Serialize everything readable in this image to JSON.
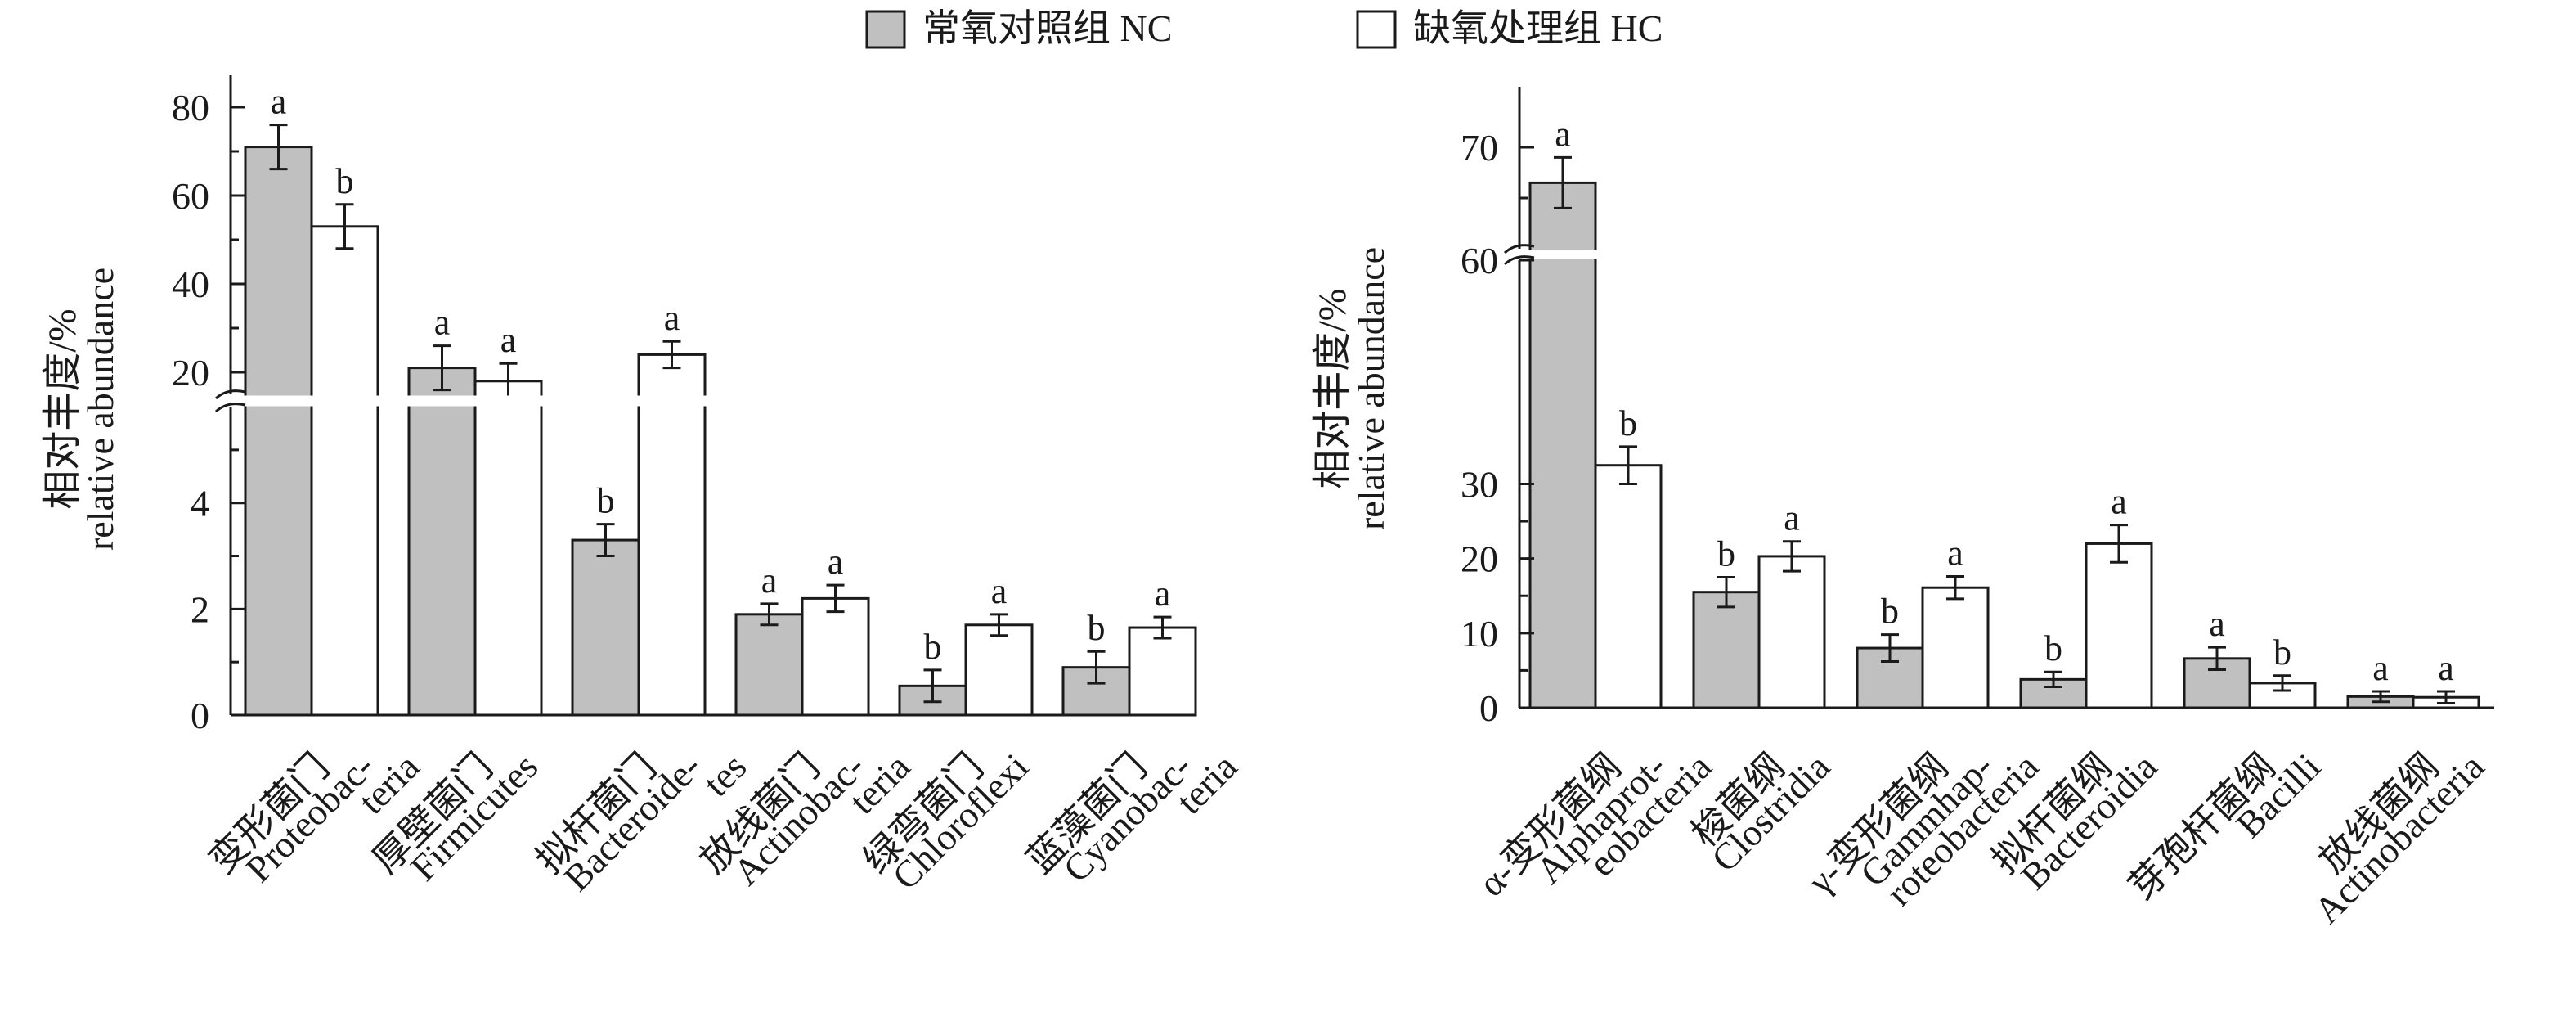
{
  "legend": [
    {
      "label": "常氧对照组 NC",
      "color": "#c0c0c0"
    },
    {
      "label": "缺氧处理组 HC",
      "color": "#ffffff"
    }
  ],
  "chart_data": [
    {
      "type": "bar",
      "title": "",
      "ylabel": [
        "相对丰度/%",
        "relative abundance"
      ],
      "xlabel": "",
      "axis_break": {
        "lower": [
          0,
          5.8
        ],
        "upper": [
          15,
          85
        ]
      },
      "lower_ticks": [
        0,
        2,
        4
      ],
      "upper_ticks": [
        20,
        40,
        60,
        80
      ],
      "categories": [
        [
          "变形菌门",
          "Proteobac-",
          "teria"
        ],
        [
          "厚壁菌门",
          "Firmicutes"
        ],
        [
          "拟杆菌门",
          "Bacteroide-",
          "tes"
        ],
        [
          "放线菌门",
          "Actinobac-",
          "teria"
        ],
        [
          "绿弯菌门",
          "Chloroflexi"
        ],
        [
          "蓝藻菌门",
          "Cyanobac-",
          "teria"
        ]
      ],
      "series": [
        {
          "name": "常氧对照组 NC",
          "values": [
            71,
            21,
            3.3,
            1.9,
            0.55,
            0.9
          ],
          "errors": [
            5,
            5,
            0.3,
            0.2,
            0.3,
            0.3
          ],
          "letters": [
            "a",
            "a",
            "b",
            "a",
            "b",
            "b"
          ]
        },
        {
          "name": "缺氧处理组 HC",
          "values": [
            53,
            18,
            24,
            2.2,
            1.7,
            1.65
          ],
          "errors": [
            5,
            4,
            3,
            0.25,
            0.2,
            0.2
          ],
          "letters": [
            "b",
            "a",
            "a",
            "a",
            "a",
            "a"
          ]
        }
      ]
    },
    {
      "type": "bar",
      "title": "",
      "ylabel": [
        "相对丰度/%",
        "relative abundance"
      ],
      "xlabel": "",
      "axis_break": {
        "lower": [
          0,
          60
        ],
        "upper": [
          60,
          75
        ]
      },
      "lower_ticks": [
        0,
        10,
        20,
        30
      ],
      "upper_ticks": [
        60,
        70
      ],
      "categories": [
        [
          "α-变形菌纲",
          "Alphaprot-",
          "eobacteria"
        ],
        [
          "梭菌纲",
          "Clostridia"
        ],
        [
          "γ-变形菌纲",
          "Gammhap-",
          "roteobacteria"
        ],
        [
          "拟杆菌纲",
          "Bacteroidia"
        ],
        [
          "芽孢杆菌纲",
          "Bacilli"
        ],
        [
          "放线菌纲",
          "Actinobacteria"
        ]
      ],
      "series": [
        {
          "name": "常氧对照组 NC",
          "values": [
            66.5,
            15.5,
            8,
            3.8,
            6.6,
            1.5
          ],
          "errors": [
            2.5,
            2,
            1.8,
            1,
            1.5,
            0.7
          ],
          "letters": [
            "a",
            "b",
            "b",
            "b",
            "a",
            "a"
          ]
        },
        {
          "name": "缺氧处理组 HC",
          "values": [
            32.5,
            20.3,
            16.1,
            22,
            3.3,
            1.4
          ],
          "errors": [
            2.5,
            2,
            1.5,
            2.5,
            1,
            0.8
          ],
          "letters": [
            "b",
            "a",
            "a",
            "a",
            "b",
            "a"
          ]
        }
      ]
    }
  ]
}
